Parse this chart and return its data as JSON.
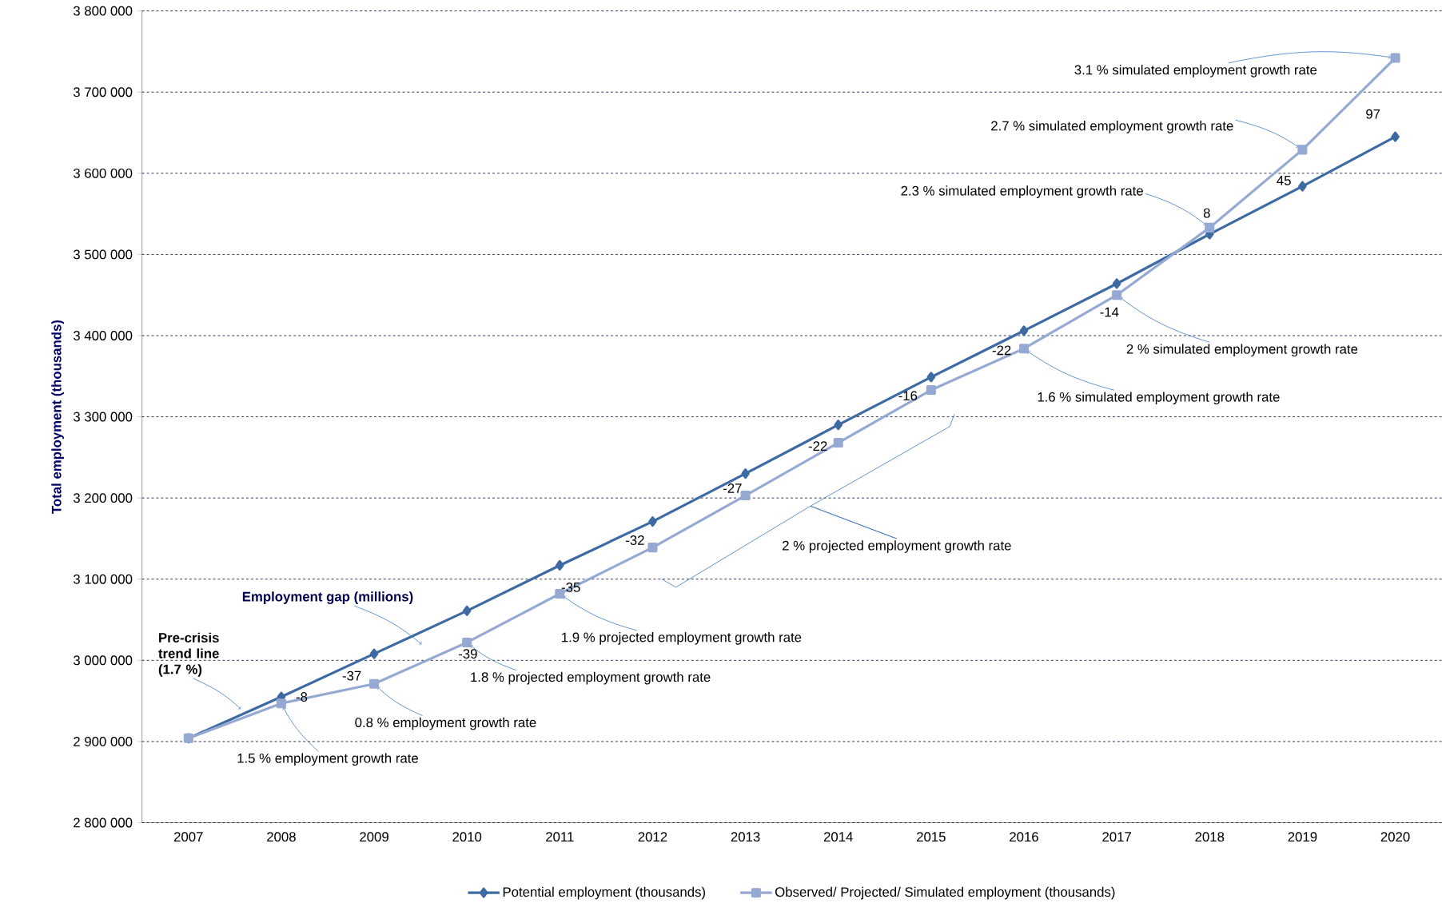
{
  "chart_data": {
    "type": "line",
    "ylabel": "Total employment (thousands)",
    "categories": [
      "2007",
      "2008",
      "2009",
      "2010",
      "2011",
      "2012",
      "2013",
      "2014",
      "2015",
      "2016",
      "2017",
      "2018",
      "2019",
      "2020"
    ],
    "series": [
      {
        "name": "Potential employment (thousands)",
        "color": "#3e6aa3",
        "marker": "diamond",
        "values": [
          2904000,
          2955000,
          3008000,
          3061000,
          3117000,
          3171000,
          3230000,
          3290000,
          3349000,
          3406000,
          3464000,
          3525000,
          3584000,
          3645000
        ]
      },
      {
        "name": "Observed/ Projected/ Simulated employment (thousands)",
        "color": "#95a9d3",
        "marker": "square",
        "values": [
          2904000,
          2947000,
          2971000,
          3022000,
          3082000,
          3139000,
          3203000,
          3268000,
          3333000,
          3384000,
          3450000,
          3533000,
          3629000,
          3742000
        ]
      }
    ],
    "ylim": [
      2800000,
      3800000
    ],
    "yticks": [
      {
        "value": 2800000,
        "label": "2 800 000"
      },
      {
        "value": 2900000,
        "label": "2 900 000"
      },
      {
        "value": 3000000,
        "label": "3 000 000"
      },
      {
        "value": 3100000,
        "label": "3 100 000"
      },
      {
        "value": 3200000,
        "label": "3 200 000"
      },
      {
        "value": 3300000,
        "label": "3 300 000"
      },
      {
        "value": 3400000,
        "label": "3 400 000"
      },
      {
        "value": 3500000,
        "label": "3 500 000"
      },
      {
        "value": 3600000,
        "label": "3 600 000"
      },
      {
        "value": 3700000,
        "label": "3 700 000"
      },
      {
        "value": 3800000,
        "label": "3 800 000"
      }
    ],
    "grid": "y",
    "legend": "bottom",
    "annotations": [
      "Pre-crisis trend line (1.7 %)",
      "Employment gap (millions)",
      {
        "text": "-8",
        "x": "2008",
        "y": 2947000
      },
      {
        "text": "-37",
        "x": "2009",
        "y": 2971000
      },
      {
        "text": "-39",
        "x": "2010",
        "y": 3022000
      },
      {
        "text": "-35",
        "x": "2011",
        "y": 3082000
      },
      {
        "text": "-32",
        "x": "2012",
        "y": 3139000
      },
      {
        "text": "-27",
        "x": "2013",
        "y": 3203000
      },
      {
        "text": "-22",
        "x": "2014",
        "y": 3268000
      },
      {
        "text": "-16",
        "x": "2015",
        "y": 3333000
      },
      {
        "text": "-22",
        "x": "2016",
        "y": 3384000
      },
      {
        "text": "-14",
        "x": "2017",
        "y": 3450000
      },
      {
        "text": "8",
        "x": "2018",
        "y": 3533000
      },
      {
        "text": "45",
        "x": "2019",
        "y": 3629000
      },
      "97",
      {
        "text": "1.5 % employment growth rate",
        "x": "2008",
        "y": 2947000
      },
      {
        "text": "0.8 % employment growth rate",
        "x": "2009",
        "y": 2971000
      },
      {
        "text": "1.8 % projected employment growth rate",
        "x": "2010",
        "y": 3022000
      },
      {
        "text": "1.9 % projected employment growth rate",
        "x": "2011",
        "y": 3082000
      },
      "2 % projected employment growth rate",
      {
        "text": "1.6 % simulated employment growth rate",
        "x": "2016",
        "y": 3384000
      },
      {
        "text": "2 % simulated employment growth rate",
        "x": "2017",
        "y": 3450000
      },
      {
        "text": "2.3 % simulated employment growth rate",
        "x": "2018",
        "y": 3533000
      },
      {
        "text": "2.7 % simulated employment growth rate",
        "x": "2019",
        "y": 3629000
      },
      {
        "text": "3.1 % simulated employment growth rate",
        "x": "2020",
        "y": 3742000
      }
    ]
  }
}
